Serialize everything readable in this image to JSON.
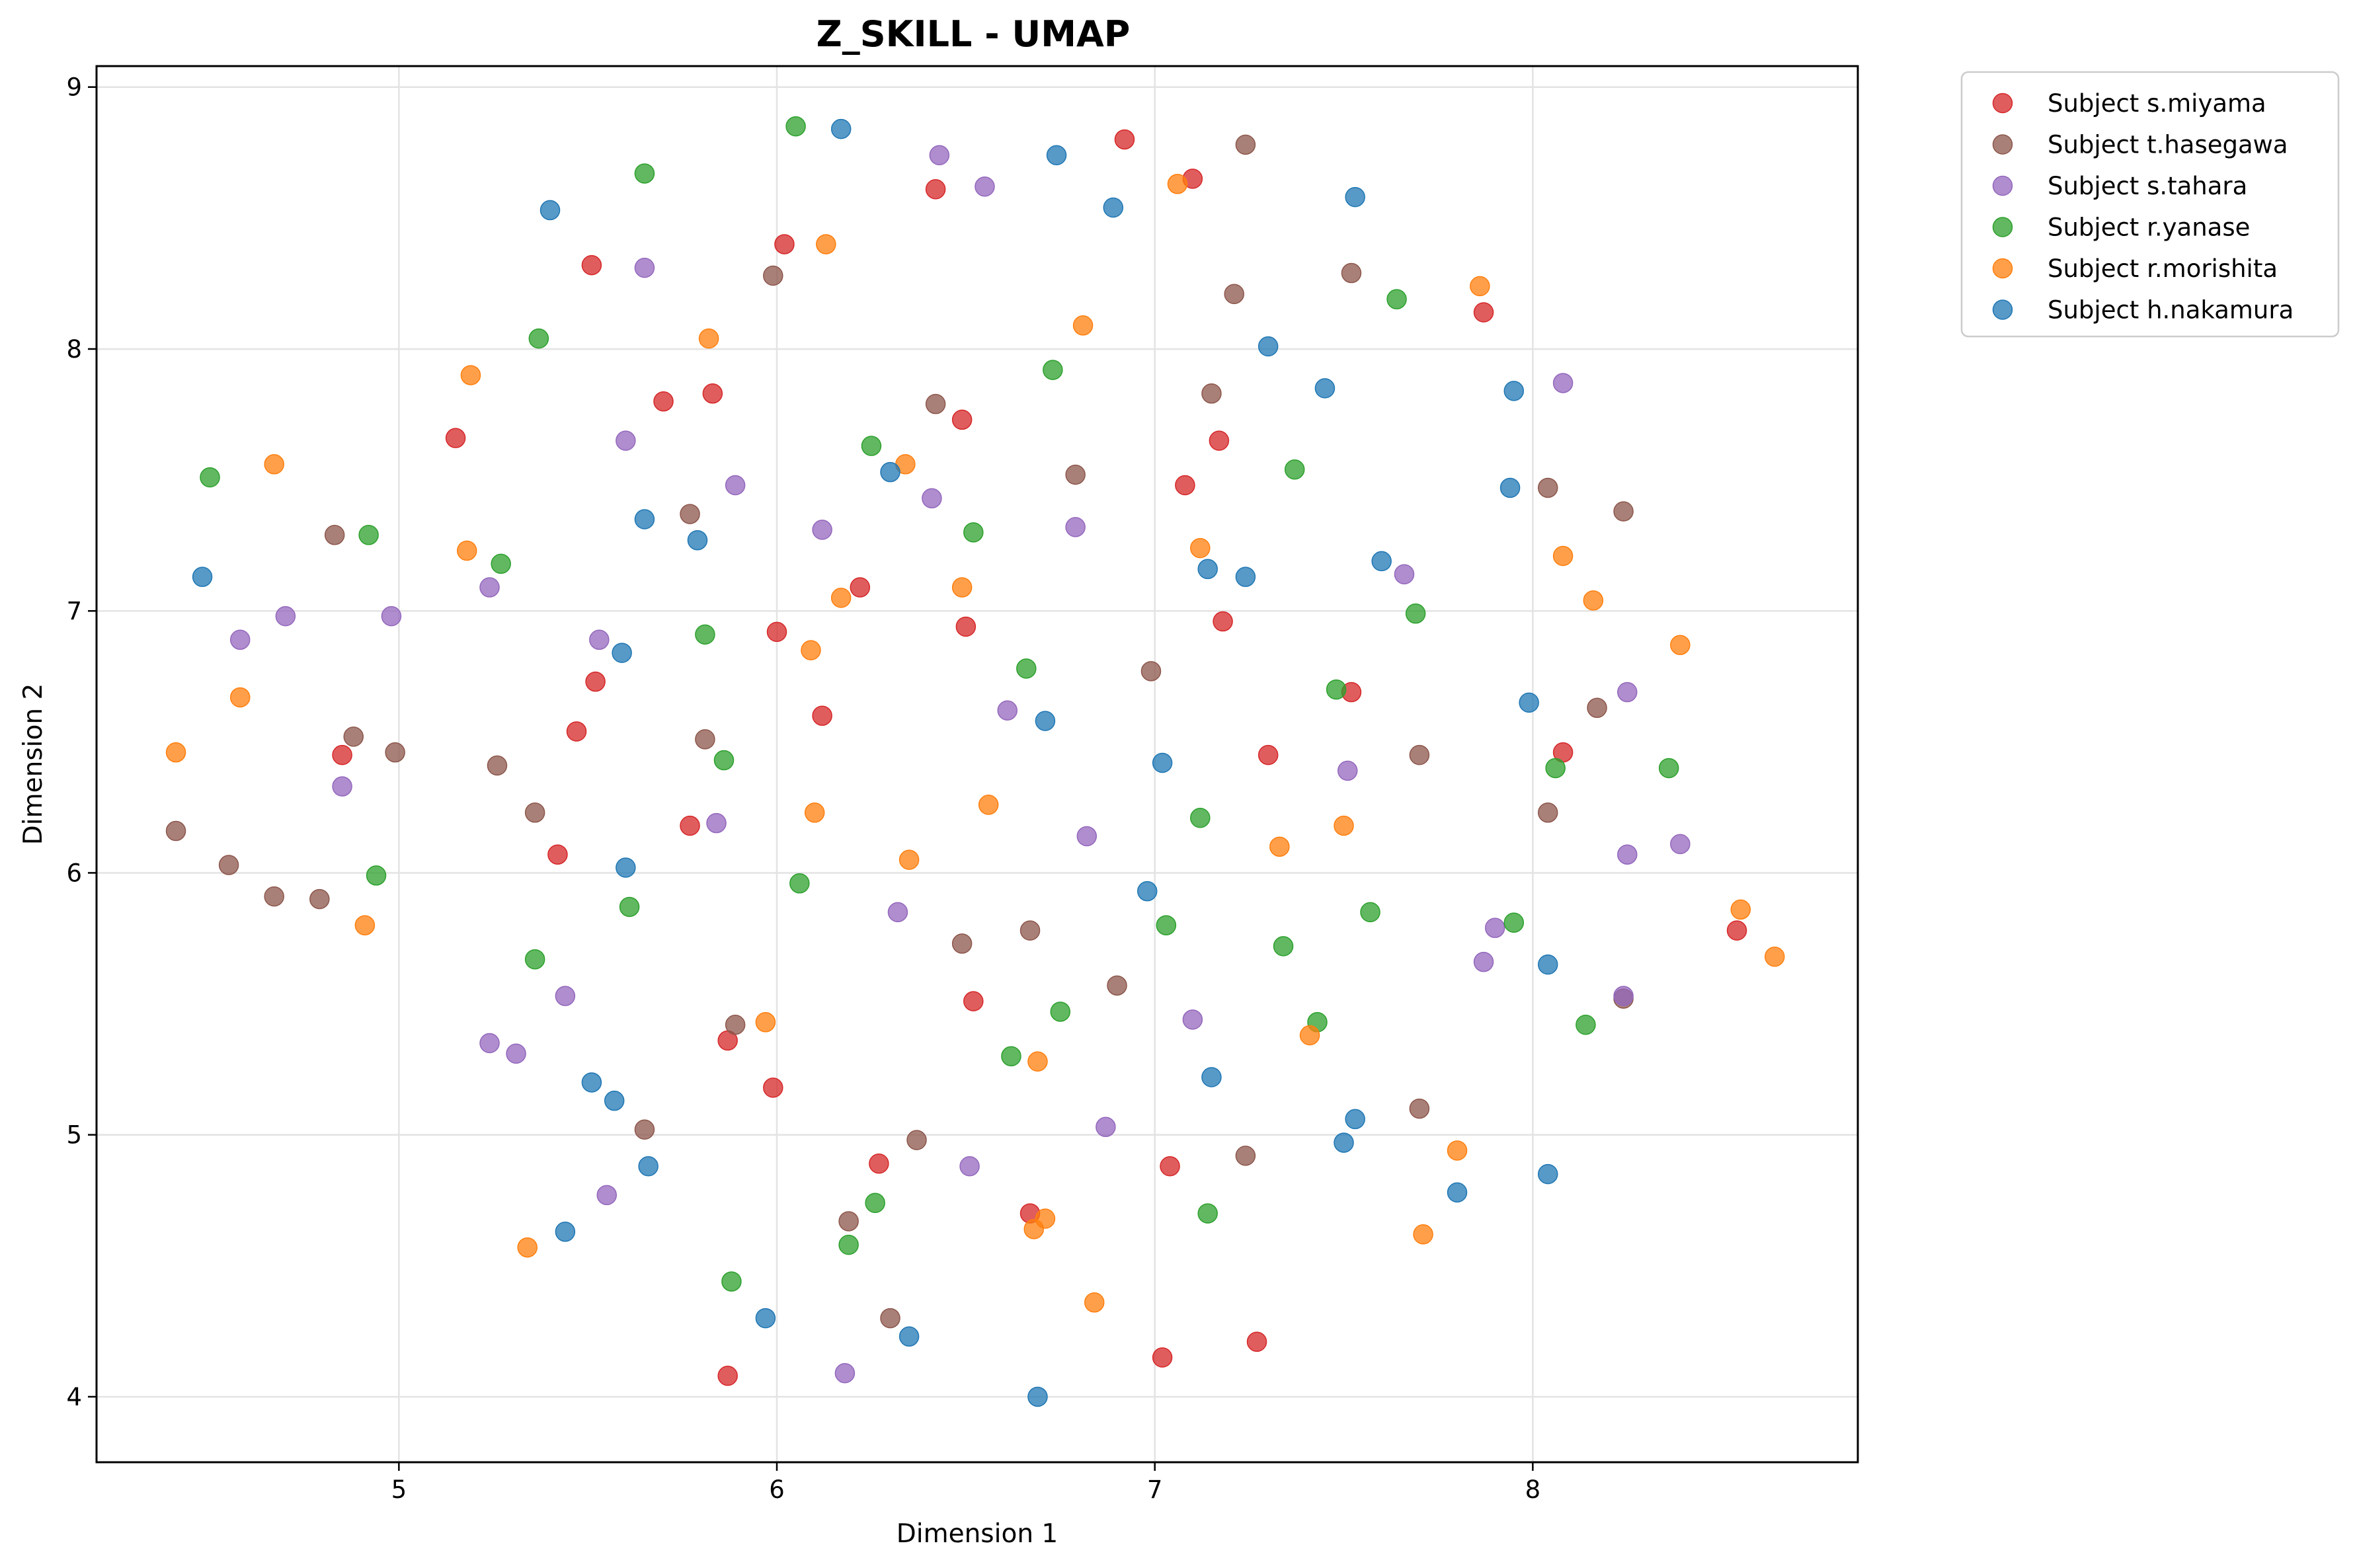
{
  "chart_data": {
    "type": "scatter",
    "title": "Z_SKILL - UMAP",
    "xlabel": "Dimension 1",
    "ylabel": "Dimension 2",
    "xlim": [
      4.2,
      8.86
    ],
    "ylim": [
      3.75,
      9.08
    ],
    "xticks": [
      5,
      6,
      7,
      8
    ],
    "yticks": [
      4,
      5,
      6,
      7,
      8,
      9
    ],
    "grid": true,
    "legend_position": "outside-top-right",
    "series": [
      {
        "name": "Subject s.miyama",
        "color": "#d62728",
        "points": [
          [
            6.92,
            8.8
          ],
          [
            6.42,
            8.61
          ],
          [
            7.1,
            8.65
          ],
          [
            6.02,
            8.4
          ],
          [
            5.51,
            8.32
          ],
          [
            7.87,
            8.14
          ],
          [
            5.7,
            7.8
          ],
          [
            5.83,
            7.83
          ],
          [
            5.15,
            7.66
          ],
          [
            6.49,
            7.73
          ],
          [
            7.17,
            7.65
          ],
          [
            7.08,
            7.48
          ],
          [
            6.22,
            7.09
          ],
          [
            6.0,
            6.92
          ],
          [
            6.5,
            6.94
          ],
          [
            7.18,
            6.96
          ],
          [
            5.52,
            6.73
          ],
          [
            7.52,
            6.69
          ],
          [
            6.12,
            6.6
          ],
          [
            5.47,
            6.54
          ],
          [
            4.85,
            6.45
          ],
          [
            7.3,
            6.45
          ],
          [
            8.08,
            6.46
          ],
          [
            5.77,
            6.18
          ],
          [
            5.42,
            6.07
          ],
          [
            8.54,
            5.78
          ],
          [
            6.52,
            5.51
          ],
          [
            5.87,
            5.36
          ],
          [
            5.99,
            5.18
          ],
          [
            6.27,
            4.89
          ],
          [
            7.04,
            4.88
          ],
          [
            6.67,
            4.7
          ],
          [
            7.27,
            4.21
          ],
          [
            7.02,
            4.15
          ],
          [
            5.87,
            4.08
          ]
        ]
      },
      {
        "name": "Subject t.hasegawa",
        "color": "#8c564b",
        "points": [
          [
            7.24,
            8.78
          ],
          [
            5.99,
            8.28
          ],
          [
            7.52,
            8.29
          ],
          [
            7.21,
            8.21
          ],
          [
            6.42,
            7.79
          ],
          [
            7.15,
            7.83
          ],
          [
            6.79,
            7.52
          ],
          [
            5.77,
            7.37
          ],
          [
            8.04,
            7.47
          ],
          [
            8.24,
            7.38
          ],
          [
            4.83,
            7.29
          ],
          [
            6.99,
            6.77
          ],
          [
            8.17,
            6.63
          ],
          [
            4.88,
            6.52
          ],
          [
            5.81,
            6.51
          ],
          [
            4.99,
            6.46
          ],
          [
            7.7,
            6.45
          ],
          [
            5.26,
            6.41
          ],
          [
            5.36,
            6.23
          ],
          [
            8.04,
            6.23
          ],
          [
            4.41,
            6.16
          ],
          [
            4.55,
            6.03
          ],
          [
            4.67,
            5.91
          ],
          [
            4.79,
            5.9
          ],
          [
            6.49,
            5.73
          ],
          [
            6.67,
            5.78
          ],
          [
            6.9,
            5.57
          ],
          [
            8.24,
            5.52
          ],
          [
            5.89,
            5.42
          ],
          [
            5.65,
            5.02
          ],
          [
            6.37,
            4.98
          ],
          [
            7.7,
            5.1
          ],
          [
            7.24,
            4.92
          ],
          [
            6.19,
            4.67
          ],
          [
            6.3,
            4.3
          ]
        ]
      },
      {
        "name": "Subject s.tahara",
        "color": "#9467bd",
        "points": [
          [
            6.43,
            8.74
          ],
          [
            6.55,
            8.62
          ],
          [
            5.65,
            8.31
          ],
          [
            8.08,
            7.87
          ],
          [
            5.6,
            7.65
          ],
          [
            5.89,
            7.48
          ],
          [
            6.41,
            7.43
          ],
          [
            6.12,
            7.31
          ],
          [
            6.79,
            7.32
          ],
          [
            5.24,
            7.09
          ],
          [
            7.66,
            7.14
          ],
          [
            4.7,
            6.98
          ],
          [
            4.98,
            6.98
          ],
          [
            4.58,
            6.89
          ],
          [
            5.53,
            6.89
          ],
          [
            6.61,
            6.62
          ],
          [
            8.25,
            6.69
          ],
          [
            7.51,
            6.39
          ],
          [
            4.85,
            6.33
          ],
          [
            5.84,
            6.19
          ],
          [
            6.82,
            6.14
          ],
          [
            8.25,
            6.07
          ],
          [
            8.39,
            6.11
          ],
          [
            6.32,
            5.85
          ],
          [
            7.9,
            5.79
          ],
          [
            7.87,
            5.66
          ],
          [
            5.44,
            5.53
          ],
          [
            8.24,
            5.53
          ],
          [
            7.1,
            5.44
          ],
          [
            5.24,
            5.35
          ],
          [
            5.31,
            5.31
          ],
          [
            6.87,
            5.03
          ],
          [
            6.51,
            4.88
          ],
          [
            5.55,
            4.77
          ],
          [
            6.18,
            4.09
          ]
        ]
      },
      {
        "name": "Subject r.yanase",
        "color": "#2ca02c",
        "points": [
          [
            6.05,
            8.85
          ],
          [
            5.65,
            8.67
          ],
          [
            7.64,
            8.19
          ],
          [
            5.37,
            8.04
          ],
          [
            6.73,
            7.92
          ],
          [
            6.25,
            7.63
          ],
          [
            7.37,
            7.54
          ],
          [
            4.5,
            7.51
          ],
          [
            4.92,
            7.29
          ],
          [
            6.52,
            7.3
          ],
          [
            5.27,
            7.18
          ],
          [
            7.69,
            6.99
          ],
          [
            5.81,
            6.91
          ],
          [
            6.66,
            6.78
          ],
          [
            7.48,
            6.7
          ],
          [
            5.86,
            6.43
          ],
          [
            8.06,
            6.4
          ],
          [
            8.36,
            6.4
          ],
          [
            7.12,
            6.21
          ],
          [
            4.94,
            5.99
          ],
          [
            6.06,
            5.96
          ],
          [
            5.61,
            5.87
          ],
          [
            7.57,
            5.85
          ],
          [
            7.95,
            5.81
          ],
          [
            7.03,
            5.8
          ],
          [
            7.34,
            5.72
          ],
          [
            5.36,
            5.67
          ],
          [
            6.75,
            5.47
          ],
          [
            7.43,
            5.43
          ],
          [
            8.14,
            5.42
          ],
          [
            6.62,
            5.3
          ],
          [
            6.26,
            4.74
          ],
          [
            7.14,
            4.7
          ],
          [
            6.19,
            4.58
          ],
          [
            5.88,
            4.44
          ]
        ]
      },
      {
        "name": "Subject r.morishita",
        "color": "#ff7f0e",
        "points": [
          [
            7.06,
            8.63
          ],
          [
            6.13,
            8.4
          ],
          [
            7.86,
            8.24
          ],
          [
            6.81,
            8.09
          ],
          [
            5.82,
            8.04
          ],
          [
            5.19,
            7.9
          ],
          [
            4.67,
            7.56
          ],
          [
            6.34,
            7.56
          ],
          [
            5.18,
            7.23
          ],
          [
            7.12,
            7.24
          ],
          [
            8.08,
            7.21
          ],
          [
            6.49,
            7.09
          ],
          [
            6.17,
            7.05
          ],
          [
            8.16,
            7.04
          ],
          [
            6.09,
            6.85
          ],
          [
            8.39,
            6.87
          ],
          [
            4.58,
            6.67
          ],
          [
            4.41,
            6.46
          ],
          [
            6.56,
            6.26
          ],
          [
            6.1,
            6.23
          ],
          [
            7.5,
            6.18
          ],
          [
            7.33,
            6.1
          ],
          [
            6.35,
            6.05
          ],
          [
            8.55,
            5.86
          ],
          [
            4.91,
            5.8
          ],
          [
            8.64,
            5.68
          ],
          [
            5.97,
            5.43
          ],
          [
            7.41,
            5.38
          ],
          [
            6.69,
            5.28
          ],
          [
            7.8,
            4.94
          ],
          [
            6.71,
            4.68
          ],
          [
            6.68,
            4.64
          ],
          [
            7.71,
            4.62
          ],
          [
            5.34,
            4.57
          ],
          [
            6.84,
            4.36
          ]
        ]
      },
      {
        "name": "Subject h.nakamura",
        "color": "#1f77b4",
        "points": [
          [
            6.17,
            8.84
          ],
          [
            6.74,
            8.74
          ],
          [
            7.53,
            8.58
          ],
          [
            6.89,
            8.54
          ],
          [
            5.4,
            8.53
          ],
          [
            7.3,
            8.01
          ],
          [
            7.45,
            7.85
          ],
          [
            7.95,
            7.84
          ],
          [
            6.3,
            7.53
          ],
          [
            7.94,
            7.47
          ],
          [
            5.65,
            7.35
          ],
          [
            5.79,
            7.27
          ],
          [
            4.48,
            7.13
          ],
          [
            7.6,
            7.19
          ],
          [
            7.14,
            7.16
          ],
          [
            7.24,
            7.13
          ],
          [
            5.59,
            6.84
          ],
          [
            7.99,
            6.65
          ],
          [
            6.71,
            6.58
          ],
          [
            7.02,
            6.42
          ],
          [
            5.6,
            6.02
          ],
          [
            6.98,
            5.93
          ],
          [
            8.04,
            5.65
          ],
          [
            7.15,
            5.22
          ],
          [
            5.51,
            5.2
          ],
          [
            5.57,
            5.13
          ],
          [
            7.53,
            5.06
          ],
          [
            7.5,
            4.97
          ],
          [
            5.66,
            4.88
          ],
          [
            8.04,
            4.85
          ],
          [
            7.8,
            4.78
          ],
          [
            5.44,
            4.63
          ],
          [
            5.97,
            4.3
          ],
          [
            6.35,
            4.23
          ],
          [
            6.69,
            4.0
          ]
        ]
      }
    ]
  }
}
